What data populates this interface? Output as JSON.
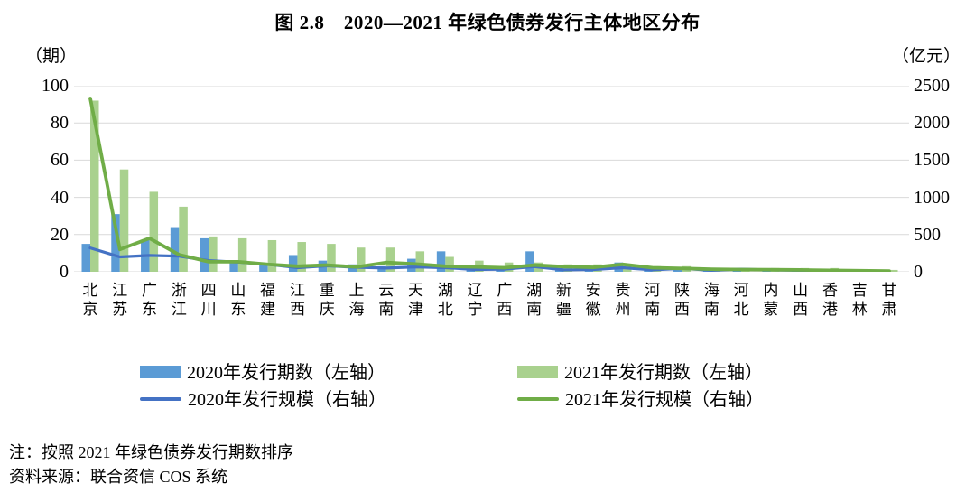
{
  "title": "图 2.8　2020—2021 年绿色债券发行主体地区分布",
  "axes": {
    "left_unit": "（期）",
    "right_unit": "（亿元）",
    "left_ticks": [
      "100",
      "80",
      "60",
      "40",
      "20",
      "0"
    ],
    "right_ticks": [
      "2500",
      "2000",
      "1500",
      "1000",
      "500",
      "0"
    ]
  },
  "legend": [
    {
      "swatch": "bar",
      "color": "#5B9BD5",
      "label": "2020年发行期数（左轴）"
    },
    {
      "swatch": "bar",
      "color": "#A9D18E",
      "label": "2021年发行期数（左轴）"
    },
    {
      "swatch": "line",
      "color": "#4472C4",
      "label": "2020年发行规模（右轴）"
    },
    {
      "swatch": "line",
      "color": "#70AD47",
      "label": "2021年发行规模（右轴）"
    }
  ],
  "notes": {
    "line1": "注：按照 2021 年绿色债券发行期数排序",
    "line2": "资料来源：联合资信 COS 系统"
  },
  "colors": {
    "bar_2020": "#5B9BD5",
    "bar_2021": "#A9D18E",
    "line_2020": "#4472C4",
    "line_2021": "#70AD47",
    "gridline": "#D9D9D9"
  },
  "chart_data": {
    "type": "bar",
    "subtype": "grouped bars + lines combo, dual axis",
    "title": "图 2.8　2020—2021 年绿色债券发行主体地区分布",
    "categories": [
      "北京",
      "江苏",
      "广东",
      "浙江",
      "四川",
      "山东",
      "福建",
      "江西",
      "重庆",
      "上海",
      "云南",
      "天津",
      "湖北",
      "辽宁",
      "广西",
      "湖南",
      "新疆",
      "安徽",
      "贵州",
      "河南",
      "陕西",
      "海南",
      "河北",
      "内蒙",
      "山西",
      "香港",
      "吉林",
      "甘肃"
    ],
    "series": [
      {
        "name": "2020年发行期数（左轴）",
        "type": "bar",
        "axis": "left",
        "color": "#5B9BD5",
        "values": [
          15,
          31,
          17,
          24,
          18,
          5,
          4,
          9,
          6,
          4,
          3,
          7,
          11,
          2,
          3,
          11,
          2,
          2,
          5,
          1,
          2,
          1,
          2,
          1,
          1,
          0,
          1,
          0
        ]
      },
      {
        "name": "2021年发行期数（左轴）",
        "type": "bar",
        "axis": "left",
        "color": "#A9D18E",
        "values": [
          92,
          55,
          43,
          35,
          19,
          18,
          17,
          16,
          15,
          13,
          13,
          11,
          8,
          6,
          5,
          5,
          4,
          4,
          4,
          3,
          3,
          2,
          2,
          2,
          2,
          2,
          1,
          1
        ]
      },
      {
        "name": "2020年发行规模（右轴）",
        "type": "line",
        "axis": "right",
        "color": "#4472C4",
        "values": [
          320,
          200,
          220,
          210,
          150,
          130,
          100,
          55,
          80,
          60,
          50,
          65,
          55,
          30,
          35,
          70,
          25,
          30,
          55,
          25,
          45,
          20,
          35,
          25,
          20,
          15,
          12,
          8
        ]
      },
      {
        "name": "2021年发行规模（右轴）",
        "type": "line",
        "axis": "right",
        "color": "#70AD47",
        "values": [
          2330,
          300,
          450,
          230,
          135,
          135,
          100,
          75,
          90,
          65,
          125,
          105,
          75,
          65,
          55,
          90,
          70,
          60,
          100,
          55,
          45,
          35,
          30,
          28,
          25,
          20,
          15,
          10
        ]
      }
    ],
    "left_axis": {
      "unit": "（期）",
      "min": 0,
      "max": 100,
      "step": 20
    },
    "right_axis": {
      "unit": "（亿元）",
      "min": 0,
      "max": 2500,
      "step": 500
    },
    "grid": "horizontal only",
    "legend_position": "bottom",
    "xlabel": "",
    "ylabel": "（期）",
    "y2label": "（亿元）"
  }
}
